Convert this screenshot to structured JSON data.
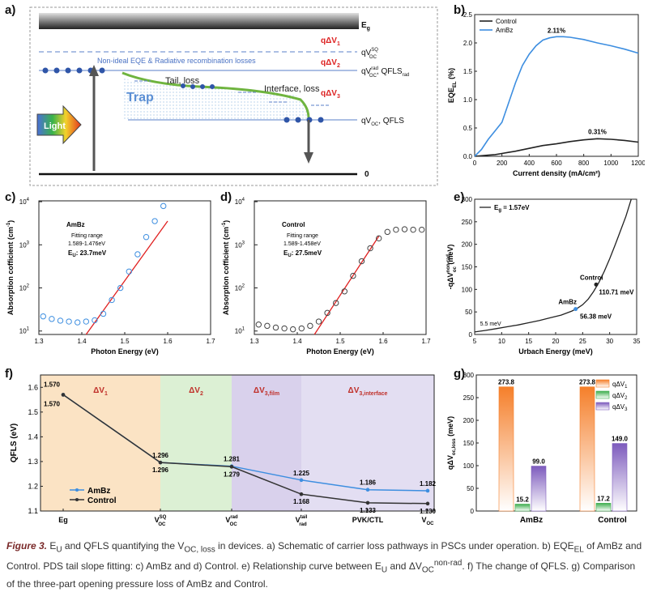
{
  "panels": {
    "a": "a)",
    "b": "b)",
    "c": "c)",
    "d": "d)",
    "e": "e)",
    "f": "f)",
    "g": "g)"
  },
  "schematic": {
    "eg": "E",
    "eg_sub": "g",
    "q_dv1": "qΔV",
    "q_dv1_sub": "1",
    "q_dv2": "qΔV",
    "q_dv2_sub": "2",
    "q_dv3": "qΔV",
    "q_dv3_sub": "3",
    "qv_sq": "qV",
    "qv_sq_sup": "SQ",
    "qv_sq_sub": "OC",
    "qv_rad": "qV",
    "qv_rad_sup": "rad",
    "qv_rad_sub": "OC",
    "qfls_rad": ", QFLS",
    "qfls_rad_sub": "rad",
    "qvoc": "qV",
    "qvoc_sub": "OC",
    "qfls": ", QFLS",
    "nonideal": "Non-ideal EQE & Radiative recombination losses",
    "tail_loss": "Tail, loss",
    "interface_loss": "Interface, loss",
    "trap": "Trap",
    "light": "Light",
    "zero": "0"
  },
  "chart_b": {
    "type": "line",
    "xlabel": "Current density (mA/cm²)",
    "ylabel": "EQE",
    "ylabel_sub": "EL",
    "ylabel_unit": " (%)",
    "xlim": [
      0,
      1200
    ],
    "ylim": [
      0,
      2.5
    ],
    "xticks": [
      "0",
      "200",
      "400",
      "600",
      "800",
      "1000",
      "1200"
    ],
    "yticks": [
      "0.0",
      "0.5",
      "1.0",
      "1.5",
      "2.0",
      "2.5"
    ],
    "legend": [
      "Control",
      "AmBz"
    ],
    "annot_ambz": "2.11%",
    "annot_control": "0.31%",
    "series": [
      {
        "name": "Control",
        "color": "#222222",
        "x": [
          0,
          50,
          100,
          150,
          200,
          250,
          300,
          400,
          500,
          600,
          700,
          800,
          900,
          1000,
          1100,
          1200
        ],
        "y": [
          0,
          0.01,
          0.02,
          0.03,
          0.05,
          0.07,
          0.09,
          0.14,
          0.19,
          0.22,
          0.26,
          0.29,
          0.31,
          0.3,
          0.28,
          0.25
        ]
      },
      {
        "name": "AmBz",
        "color": "#3d8ee0",
        "x": [
          0,
          50,
          100,
          150,
          200,
          250,
          300,
          350,
          400,
          450,
          500,
          550,
          600,
          650,
          700,
          800,
          900,
          1000,
          1100,
          1200
        ],
        "y": [
          0,
          0.12,
          0.3,
          0.45,
          0.6,
          0.95,
          1.3,
          1.6,
          1.8,
          1.95,
          2.05,
          2.09,
          2.11,
          2.11,
          2.1,
          2.06,
          2.0,
          1.95,
          1.89,
          1.82
        ]
      }
    ]
  },
  "chart_c": {
    "type": "scatter",
    "xlabel": "Photon Energy (eV)",
    "ylabel": "Absorption cofficient (cm",
    "ylabel_sup": "-1",
    "ylabel_end": ")",
    "xlim": [
      1.3,
      1.7
    ],
    "xticks": [
      "1.3",
      "1.4",
      "1.5",
      "1.6",
      "1.7"
    ],
    "yticks": [
      "10",
      "10",
      "10",
      "10"
    ],
    "ytick_sups": [
      "1",
      "2",
      "3",
      "4"
    ],
    "title": "AmBz",
    "fit_label": "Fitting range",
    "fit_range": "1.589-1.476eV",
    "eu_label": "E",
    "eu_sub": "U",
    "eu_value": ": 23.7meV",
    "color": "#3d8ee0",
    "x": [
      1.31,
      1.33,
      1.35,
      1.37,
      1.39,
      1.41,
      1.43,
      1.45,
      1.47,
      1.49,
      1.51,
      1.53,
      1.55,
      1.57,
      1.59,
      1.61,
      1.63,
      1.65,
      1.67,
      1.69
    ],
    "y": [
      1.34,
      1.28,
      1.24,
      1.22,
      1.2,
      1.22,
      1.25,
      1.4,
      1.72,
      2.0,
      2.38,
      2.78,
      3.18,
      3.55,
      3.9,
      4.15,
      4.22,
      4.28,
      4.28,
      4.3
    ],
    "fit_line": {
      "x": [
        1.41,
        1.6
      ],
      "y": [
        0.8,
        3.55
      ]
    }
  },
  "chart_d": {
    "type": "scatter",
    "xlabel": "Photon Energy (eV)",
    "ylabel": "Absorption cofficient (cm",
    "ylabel_sup": "-1",
    "ylabel_end": ")",
    "xlim": [
      1.3,
      1.7
    ],
    "xticks": [
      "1.3",
      "1.4",
      "1.5",
      "1.6",
      "1.7"
    ],
    "yticks": [
      "10",
      "10",
      "10",
      "10"
    ],
    "ytick_sups": [
      "1",
      "2",
      "3",
      "4"
    ],
    "title": "Control",
    "fit_label": "Fitting range",
    "fit_range": "1.589-1.458eV",
    "eu_label": "E",
    "eu_sub": "U",
    "eu_value": ": 27.5meV",
    "color": "#444444",
    "x": [
      1.31,
      1.33,
      1.35,
      1.37,
      1.39,
      1.41,
      1.43,
      1.45,
      1.47,
      1.49,
      1.51,
      1.53,
      1.55,
      1.57,
      1.59,
      1.61,
      1.63,
      1.65,
      1.67,
      1.69
    ],
    "y": [
      1.15,
      1.12,
      1.08,
      1.06,
      1.04,
      1.06,
      1.12,
      1.22,
      1.42,
      1.65,
      1.92,
      2.28,
      2.62,
      2.92,
      3.15,
      3.3,
      3.35,
      3.36,
      3.35,
      3.35
    ],
    "fit_line": {
      "x": [
        1.44,
        1.59
      ],
      "y": [
        0.92,
        3.2
      ]
    }
  },
  "chart_e": {
    "type": "line",
    "xlabel": "Urbach Energy (meV)",
    "ylabel": "-qΔV",
    "ylabel_sup": "non-rad",
    "ylabel_sub": "oc",
    "ylabel_end": " (meV)",
    "xlim": [
      5,
      35
    ],
    "ylim": [
      0,
      300
    ],
    "xticks": [
      "5",
      "10",
      "15",
      "20",
      "25",
      "30",
      "35"
    ],
    "yticks": [
      "0",
      "50",
      "100",
      "150",
      "200",
      "250",
      "300"
    ],
    "legend_eg": "E",
    "legend_eg_sub": "g",
    "legend_eg_value": " = 1.57eV",
    "annot_min": "5.5 meV",
    "annot_control": "Control",
    "annot_control_val": "110.71 meV",
    "annot_ambz": "AmBz",
    "annot_ambz_val": "56.38 meV",
    "x": [
      5,
      7,
      9,
      11,
      13,
      15,
      17,
      19,
      21,
      23,
      24,
      25,
      26,
      27,
      28,
      29,
      30,
      31,
      32,
      33,
      34
    ],
    "y": [
      5.5,
      9,
      13,
      17,
      21,
      26,
      31,
      37,
      43,
      52,
      58,
      66,
      78,
      95,
      115,
      140,
      168,
      198,
      230,
      262,
      300
    ],
    "points": [
      {
        "x": 23.7,
        "y": 56.38,
        "color": "#3d8ee0"
      },
      {
        "x": 27.5,
        "y": 110.71,
        "color": "#222222"
      }
    ]
  },
  "chart_f": {
    "type": "line",
    "ylabel": "QFLS (eV)",
    "ylim": [
      1.1,
      1.65
    ],
    "yticks": [
      "1.1",
      "1.2",
      "1.3",
      "1.4",
      "1.5",
      "1.6"
    ],
    "categories": [
      "Eg",
      "V",
      "V",
      "V",
      "PVK/CTL",
      "V"
    ],
    "cat_sup": [
      "",
      "SQ",
      "rad",
      "tail",
      "",
      ""
    ],
    "cat_sub": [
      "",
      "OC",
      "OC",
      "rad",
      "",
      "OC"
    ],
    "regions": [
      {
        "label": "ΔV",
        "sub": "1",
        "color": "#fbe3c4"
      },
      {
        "label": "ΔV",
        "sub": "2",
        "color": "#dcf0d4"
      },
      {
        "label": "ΔV",
        "sub": "3,film",
        "color": "#d9d1ec"
      },
      {
        "label": "ΔV",
        "sub": "3,interface",
        "color": "#e3def2"
      }
    ],
    "legend": [
      "AmBz",
      "Control"
    ],
    "series": [
      {
        "name": "AmBz",
        "color": "#3d8ee0",
        "values": [
          1.57,
          1.296,
          1.281,
          1.225,
          1.186,
          1.182
        ],
        "labels": [
          "1.570",
          "1.296",
          "1.281",
          "1.225",
          "1.186",
          "1.182"
        ]
      },
      {
        "name": "Control",
        "color": "#333333",
        "values": [
          1.57,
          1.296,
          1.279,
          1.168,
          1.133,
          1.13
        ],
        "labels": [
          "1.570",
          "1.296",
          "1.279",
          "1.168",
          "1.133",
          "1.130"
        ]
      }
    ]
  },
  "chart_g": {
    "type": "bar",
    "ylabel": "qΔV",
    "ylabel_sub": "oc,loss",
    "ylabel_end": " (meV)",
    "ylim": [
      0,
      300
    ],
    "yticks": [
      "0",
      "50",
      "100",
      "150",
      "200",
      "250",
      "300"
    ],
    "categories": [
      "AmBz",
      "Control"
    ],
    "legend": [
      {
        "label": "qΔV",
        "sub": "1",
        "color": "#f57f2a"
      },
      {
        "label": "qΔV",
        "sub": "2",
        "color": "#3fae4f"
      },
      {
        "label": "qΔV",
        "sub": "3",
        "color": "#7d5bbd"
      }
    ],
    "series": [
      {
        "name": "qΔV1",
        "values": [
          273.8,
          273.8
        ],
        "labels": [
          "273.8",
          "273.8"
        ]
      },
      {
        "name": "qΔV2",
        "values": [
          15.2,
          17.2
        ],
        "labels": [
          "15.2",
          "17.2"
        ]
      },
      {
        "name": "qΔV3",
        "values": [
          99.0,
          149.0
        ],
        "labels": [
          "99.0",
          "149.0"
        ]
      }
    ]
  },
  "caption": {
    "fig": "Figure 3.",
    "text": " E",
    "sub1": "U",
    "t2": " and QFLS quantifying the V",
    "sub2": "OC, loss",
    "t3": " in devices. a) Schematic of carrier loss pathways in PSCs under operation. b) EQE",
    "sub3": "EL",
    "t4": " of AmBz and Control. PDS tail slope fitting: c) AmBz and d) Control. e) Relationship curve between E",
    "sub4": "U",
    "t5": " and ΔV",
    "sub5": "OC",
    "sup5": "non-rad",
    "t6": ". f) The change of QFLS. g) Comparison of the three-part opening pressure loss of AmBz and Control."
  }
}
